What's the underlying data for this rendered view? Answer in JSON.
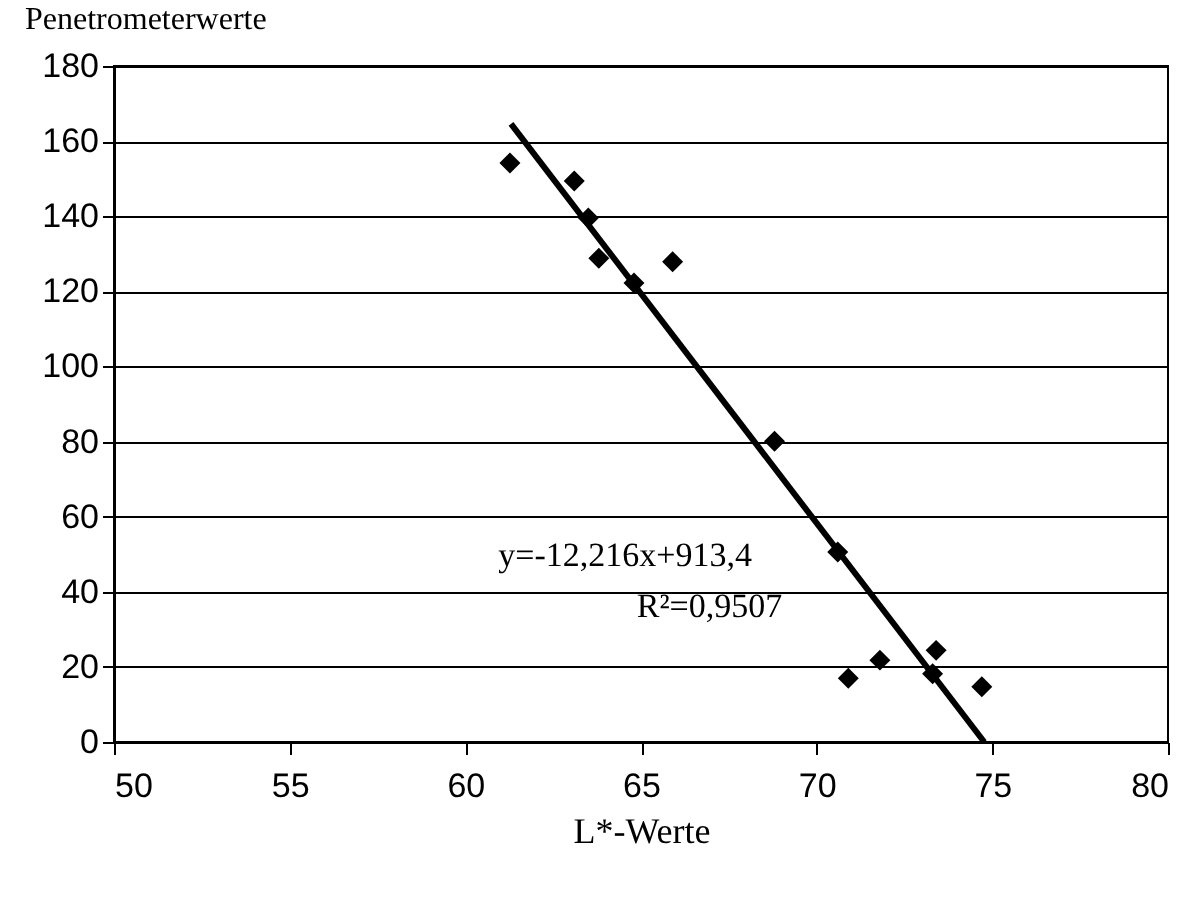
{
  "chart_data": {
    "type": "scatter",
    "xlabel": "L*-Werte",
    "ylabel": "Penetrometerwerte",
    "xlim": [
      50,
      80
    ],
    "xticks": [
      50,
      55,
      60,
      65,
      70,
      75,
      80
    ],
    "ylim": [
      0,
      180
    ],
    "yticks": [
      0,
      20,
      40,
      60,
      80,
      100,
      120,
      140,
      160,
      180
    ],
    "grid": "y",
    "series": [
      {
        "marker": "diamond",
        "color": "#000000",
        "x": [
          61.27,
          63.1,
          63.5,
          63.8,
          64.8,
          65.9,
          68.8,
          70.6,
          70.9,
          71.8,
          73.4,
          73.3,
          74.7
        ],
        "values": [
          154.2,
          149.4,
          139.5,
          128.8,
          122.2,
          127.9,
          80.1,
          50.6,
          17.0,
          21.8,
          24.4,
          18.2,
          14.7
        ]
      },
      {
        "type": "line",
        "marker": "none",
        "color": "#000000",
        "line_style": "solid",
        "x": [
          61.3,
          74.77
        ],
        "values": [
          164.6,
          0
        ]
      }
    ],
    "annotations": [
      "y=-12,216x+913,4",
      "R²=0,9507"
    ]
  }
}
